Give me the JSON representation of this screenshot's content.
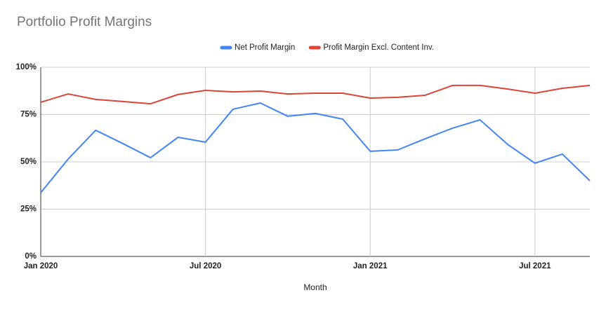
{
  "chart_data": {
    "type": "line",
    "title": "Portfolio Profit Margins",
    "x_label": "Month",
    "categories": [
      "Jan 2020",
      null,
      null,
      null,
      null,
      null,
      "Jul 2020",
      null,
      null,
      null,
      null,
      null,
      "Jan 2021",
      null,
      null,
      null,
      null,
      null,
      "Jul 2021",
      null,
      null
    ],
    "series": [
      {
        "name": "Net Profit Margin",
        "color": "#4285f4",
        "values": [
          33.7,
          51.5,
          66.7,
          59.6,
          52.2,
          63,
          60.4,
          77.8,
          81.1,
          74.1,
          75.6,
          72.6,
          55.6,
          56.3,
          62.2,
          67.8,
          72.2,
          59.3,
          49.3,
          54.1,
          40
        ]
      },
      {
        "name": "Profit Margin Excl. Content Inv.",
        "color": "#db4437",
        "values": [
          81.5,
          85.9,
          83,
          81.9,
          80.7,
          85.6,
          87.8,
          87,
          87.4,
          85.9,
          86.3,
          86.3,
          83.7,
          84.1,
          85.2,
          90.4,
          90.4,
          88.5,
          86.3,
          88.9,
          90.4
        ]
      }
    ],
    "ylim": [
      0,
      100
    ],
    "yticks": [
      {
        "value": 0,
        "label": "0%"
      },
      {
        "value": 25,
        "label": "25%"
      },
      {
        "value": 50,
        "label": "50%"
      },
      {
        "value": 75,
        "label": "75%"
      },
      {
        "value": 100,
        "label": "100%"
      }
    ],
    "grid": true,
    "legend": "top"
  }
}
